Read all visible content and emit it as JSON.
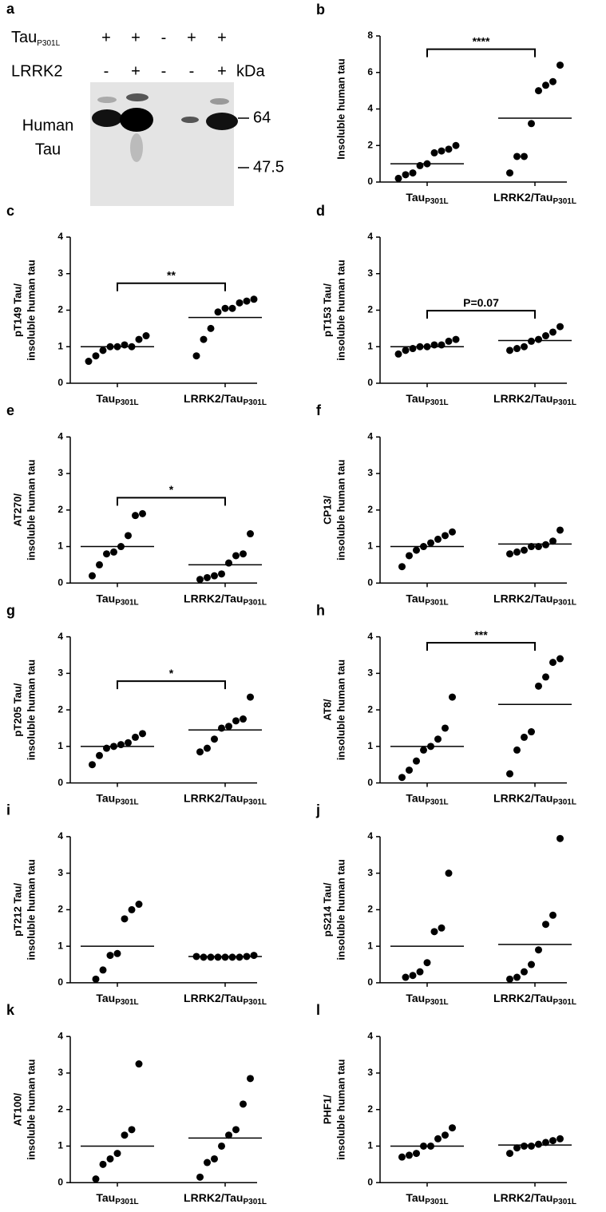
{
  "blot": {
    "panel": "a",
    "rows": [
      {
        "label": "Tau",
        "label_sub": "P301L",
        "signs": [
          "+",
          "+",
          "-",
          "+",
          "+"
        ]
      },
      {
        "label": "LRRK2",
        "signs": [
          "-",
          "+",
          "-",
          "-",
          "+"
        ]
      }
    ],
    "unit": "kDa",
    "protein": [
      "Human",
      "Tau"
    ],
    "markers": [
      64,
      47.5
    ]
  },
  "chart_data": [
    {
      "type": "strip",
      "panel": "b",
      "ylabel": [
        "Insoluble human tau"
      ],
      "categories": [
        "Tau",
        "LRRK2/Tau"
      ],
      "category_subscripts": [
        "P301L",
        "P301L"
      ],
      "points": [
        [
          0.2,
          0.4,
          0.5,
          0.9,
          1.0,
          1.6,
          1.7,
          1.8,
          2.0
        ],
        [
          0.5,
          1.4,
          1.4,
          3.2,
          5.0,
          5.3,
          5.5,
          6.4
        ]
      ],
      "means": [
        1.0,
        3.5
      ],
      "ylim": [
        0,
        8
      ],
      "yticks": [
        0,
        2,
        4,
        6,
        8
      ],
      "annotation": "****",
      "color": "#000000"
    },
    {
      "type": "strip",
      "panel": "c",
      "ylabel": [
        "pT149 Tau/",
        "insoluble human tau"
      ],
      "categories": [
        "Tau",
        "LRRK2/Tau"
      ],
      "category_subscripts": [
        "P301L",
        "P301L"
      ],
      "points": [
        [
          0.6,
          0.75,
          0.9,
          1.0,
          1.0,
          1.05,
          1.0,
          1.2,
          1.3
        ],
        [
          0.75,
          1.2,
          1.5,
          1.95,
          2.05,
          2.05,
          2.2,
          2.25,
          2.3
        ]
      ],
      "means": [
        1.0,
        1.8
      ],
      "ylim": [
        0,
        4
      ],
      "yticks": [
        0,
        1,
        2,
        3,
        4
      ],
      "annotation": "**",
      "color": "#000000"
    },
    {
      "type": "strip",
      "panel": "d",
      "ylabel": [
        "pT153 Tau/",
        "insoluble human tau"
      ],
      "categories": [
        "Tau",
        "LRRK2/Tau"
      ],
      "category_subscripts": [
        "P301L",
        "P301L"
      ],
      "points": [
        [
          0.8,
          0.9,
          0.95,
          1.0,
          1.0,
          1.05,
          1.05,
          1.15,
          1.2
        ],
        [
          0.9,
          0.95,
          1.0,
          1.15,
          1.2,
          1.3,
          1.4,
          1.55
        ]
      ],
      "means": [
        1.0,
        1.17
      ],
      "ylim": [
        0,
        4
      ],
      "yticks": [
        0,
        1,
        2,
        3,
        4
      ],
      "annotation": "P=0.07",
      "color": "#000000"
    },
    {
      "type": "strip",
      "panel": "e",
      "ylabel": [
        "AT270/",
        "insoluble human tau"
      ],
      "categories": [
        "Tau",
        "LRRK2/Tau"
      ],
      "category_subscripts": [
        "P301L",
        "P301L"
      ],
      "points": [
        [
          0.2,
          0.5,
          0.8,
          0.85,
          1.0,
          1.3,
          1.85,
          1.9
        ],
        [
          0.1,
          0.15,
          0.2,
          0.25,
          0.55,
          0.75,
          0.8,
          1.35
        ]
      ],
      "means": [
        1.0,
        0.5
      ],
      "ylim": [
        0,
        4
      ],
      "yticks": [
        0,
        1,
        2,
        3,
        4
      ],
      "annotation": "*",
      "color": "#000000"
    },
    {
      "type": "strip",
      "panel": "f",
      "ylabel": [
        "CP13/",
        "insoluble human tau"
      ],
      "categories": [
        "Tau",
        "LRRK2/Tau"
      ],
      "category_subscripts": [
        "P301L",
        "P301L"
      ],
      "points": [
        [
          0.45,
          0.75,
          0.9,
          1.0,
          1.1,
          1.2,
          1.3,
          1.4
        ],
        [
          0.8,
          0.85,
          0.9,
          1.0,
          1.0,
          1.05,
          1.15,
          1.45
        ]
      ],
      "means": [
        1.0,
        1.07
      ],
      "ylim": [
        0,
        4
      ],
      "yticks": [
        0,
        1,
        2,
        3,
        4
      ],
      "color": "#000000"
    },
    {
      "type": "strip",
      "panel": "g",
      "ylabel": [
        "pT205 Tau/",
        "insoluble human tau"
      ],
      "categories": [
        "Tau",
        "LRRK2/Tau"
      ],
      "category_subscripts": [
        "P301L",
        "P301L"
      ],
      "points": [
        [
          0.5,
          0.75,
          0.95,
          1.0,
          1.05,
          1.1,
          1.25,
          1.35
        ],
        [
          0.85,
          0.95,
          1.2,
          1.5,
          1.55,
          1.7,
          1.75,
          2.35
        ]
      ],
      "means": [
        1.0,
        1.45
      ],
      "ylim": [
        0,
        4
      ],
      "yticks": [
        0,
        1,
        2,
        3,
        4
      ],
      "annotation": "*",
      "color": "#000000"
    },
    {
      "type": "strip",
      "panel": "h",
      "ylabel": [
        "AT8/",
        "insoluble human tau"
      ],
      "categories": [
        "Tau",
        "LRRK2/Tau"
      ],
      "category_subscripts": [
        "P301L",
        "P301L"
      ],
      "points": [
        [
          0.15,
          0.35,
          0.6,
          0.9,
          1.0,
          1.2,
          1.5,
          2.35
        ],
        [
          0.25,
          0.9,
          1.25,
          1.4,
          2.65,
          2.9,
          3.3,
          3.4
        ]
      ],
      "means": [
        1.0,
        2.15
      ],
      "ylim": [
        0,
        4
      ],
      "yticks": [
        0,
        1,
        2,
        3,
        4
      ],
      "annotation": "***",
      "color": "#000000"
    },
    {
      "type": "strip",
      "panel": "i",
      "ylabel": [
        "pT212 Tau/",
        "insoluble human tau"
      ],
      "categories": [
        "Tau",
        "LRRK2/Tau"
      ],
      "category_subscripts": [
        "P301L",
        "P301L"
      ],
      "points": [
        [
          0.1,
          0.35,
          0.75,
          0.8,
          1.75,
          2.0,
          2.15
        ],
        [
          0.72,
          0.7,
          0.7,
          0.7,
          0.7,
          0.7,
          0.7,
          0.72,
          0.75
        ]
      ],
      "means": [
        1.0,
        0.72
      ],
      "ylim": [
        0,
        4
      ],
      "yticks": [
        0,
        1,
        2,
        3,
        4
      ],
      "color": "#000000"
    },
    {
      "type": "strip",
      "panel": "j",
      "ylabel": [
        "pS214 Tau/",
        "insoluble human tau"
      ],
      "categories": [
        "Tau",
        "LRRK2/Tau"
      ],
      "category_subscripts": [
        "P301L",
        "P301L"
      ],
      "points": [
        [
          0.15,
          0.2,
          0.3,
          0.55,
          1.4,
          1.5,
          3.0
        ],
        [
          0.1,
          0.15,
          0.3,
          0.5,
          0.9,
          1.6,
          1.85,
          3.95
        ]
      ],
      "means": [
        1.0,
        1.05
      ],
      "ylim": [
        0,
        4
      ],
      "yticks": [
        0,
        1,
        2,
        3,
        4
      ],
      "color": "#000000"
    },
    {
      "type": "strip",
      "panel": "k",
      "ylabel": [
        "AT100/",
        "insoluble human tau"
      ],
      "categories": [
        "Tau",
        "LRRK2/Tau"
      ],
      "category_subscripts": [
        "P301L",
        "P301L"
      ],
      "points": [
        [
          0.1,
          0.5,
          0.65,
          0.8,
          1.3,
          1.45,
          3.25
        ],
        [
          0.15,
          0.55,
          0.65,
          1.0,
          1.3,
          1.45,
          2.15,
          2.85
        ]
      ],
      "means": [
        1.0,
        1.22
      ],
      "ylim": [
        0,
        4
      ],
      "yticks": [
        0,
        1,
        2,
        3,
        4
      ],
      "color": "#000000"
    },
    {
      "type": "strip",
      "panel": "l",
      "ylabel": [
        "PHF1/",
        "insoluble human tau"
      ],
      "categories": [
        "Tau",
        "LRRK2/Tau"
      ],
      "category_subscripts": [
        "P301L",
        "P301L"
      ],
      "points": [
        [
          0.7,
          0.75,
          0.8,
          1.0,
          1.0,
          1.2,
          1.3,
          1.5
        ],
        [
          0.8,
          0.95,
          1.0,
          1.0,
          1.05,
          1.1,
          1.15,
          1.2
        ]
      ],
      "means": [
        1.0,
        1.03
      ],
      "ylim": [
        0,
        4
      ],
      "yticks": [
        0,
        1,
        2,
        3,
        4
      ],
      "color": "#000000"
    }
  ]
}
